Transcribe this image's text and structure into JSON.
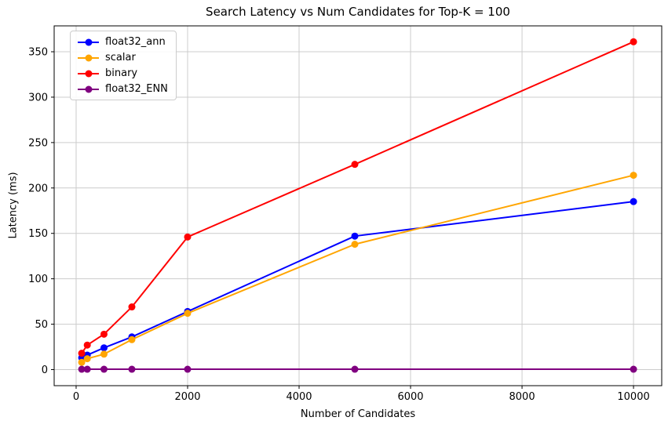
{
  "figure": {
    "background": "#ffffff",
    "text_color": "#000000",
    "grid_color": "#cccccc",
    "spine_color": "#000000"
  },
  "chart_data": {
    "type": "line",
    "title": "Search Latency vs Num Candidates for Top-K = 100",
    "xlabel": "Number of Candidates",
    "ylabel": "Latency (ms)",
    "x": [
      100,
      200,
      500,
      1000,
      2000,
      5000,
      10000
    ],
    "series": [
      {
        "name": "float32_ann",
        "color": "#0000ff",
        "values": [
          13,
          16,
          24,
          36,
          64,
          147,
          185
        ]
      },
      {
        "name": "scalar",
        "color": "#ffa500",
        "values": [
          8,
          12,
          17,
          33,
          62,
          138,
          214
        ]
      },
      {
        "name": "binary",
        "color": "#ff0000",
        "values": [
          18,
          27,
          39,
          69,
          146,
          226,
          361
        ]
      },
      {
        "name": "float32_ENN",
        "color": "#800080",
        "values": [
          0.4,
          0.4,
          0.4,
          0.4,
          0.4,
          0.4,
          0.4
        ]
      }
    ],
    "xticks": [
      0,
      2000,
      4000,
      6000,
      8000,
      10000
    ],
    "yticks": [
      0,
      50,
      100,
      150,
      200,
      250,
      300,
      350
    ],
    "xtick_labels": [
      "0",
      "2000",
      "4000",
      "6000",
      "8000",
      "10000"
    ],
    "ytick_labels": [
      "0",
      "50",
      "100",
      "150",
      "200",
      "250",
      "300",
      "350"
    ],
    "xlim": [
      -394,
      10506
    ],
    "ylim": [
      -17.7,
      378.5
    ],
    "grid": true,
    "legend_position": "upper left",
    "marker": "circle",
    "line_width": 2
  }
}
